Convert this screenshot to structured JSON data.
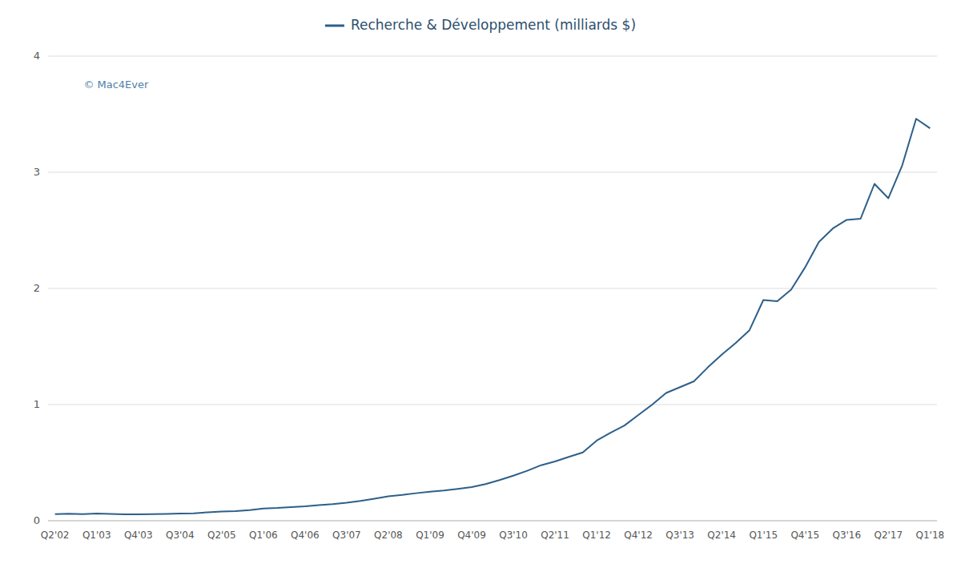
{
  "chart_data": {
    "type": "line",
    "categories": [
      "Q2'02",
      null,
      null,
      "Q1'03",
      null,
      null,
      "Q4'03",
      null,
      null,
      "Q3'04",
      null,
      null,
      "Q2'05",
      null,
      null,
      "Q1'06",
      null,
      null,
      "Q4'06",
      null,
      null,
      "Q3'07",
      null,
      null,
      "Q2'08",
      null,
      null,
      "Q1'09",
      null,
      null,
      "Q4'09",
      null,
      null,
      "Q3'10",
      null,
      null,
      "Q2'11",
      null,
      null,
      "Q1'12",
      null,
      null,
      "Q4'12",
      null,
      null,
      "Q3'13",
      null,
      null,
      "Q2'14",
      null,
      null,
      "Q1'15",
      null,
      null,
      "Q4'15",
      null,
      null,
      "Q3'16",
      null,
      null,
      "Q2'17",
      null,
      null,
      "Q1'18"
    ],
    "series": [
      {
        "name": "Recherche & Développement (milliards $)",
        "color": "#2d5f8a",
        "values": [
          0.057,
          0.06,
          0.057,
          0.062,
          0.058,
          0.056,
          0.055,
          0.057,
          0.059,
          0.062,
          0.064,
          0.073,
          0.08,
          0.083,
          0.092,
          0.105,
          0.11,
          0.118,
          0.124,
          0.135,
          0.143,
          0.155,
          0.17,
          0.189,
          0.21,
          0.222,
          0.237,
          0.25,
          0.26,
          0.274,
          0.289,
          0.316,
          0.35,
          0.388,
          0.43,
          0.478,
          0.51,
          0.55,
          0.588,
          0.69,
          0.758,
          0.82,
          0.91,
          1.0,
          1.1,
          1.15,
          1.2,
          1.32,
          1.43,
          1.53,
          1.64,
          1.9,
          1.89,
          1.99,
          2.18,
          2.4,
          2.516,
          2.59,
          2.6,
          2.9,
          2.776,
          3.06,
          3.46,
          3.378
        ]
      }
    ],
    "ylim": [
      0,
      4.0
    ],
    "yticks": [
      0,
      1,
      2,
      3,
      4
    ],
    "grid": true,
    "legend": "top",
    "annotations": [
      "© Mac4Ever"
    ]
  }
}
